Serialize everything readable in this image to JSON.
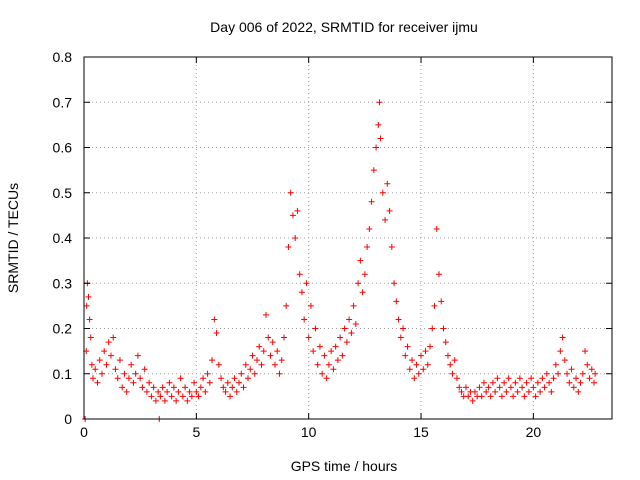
{
  "chart_data": {
    "type": "scatter",
    "title": "Day 006 of 2022, SRMTID for receiver ijmu",
    "xlabel": "GPS time / hours",
    "ylabel": "SRMTID / TECUs",
    "xlim": [
      0,
      23.5
    ],
    "ylim": [
      0,
      0.8
    ],
    "xticks": [
      0,
      5,
      10,
      15,
      20
    ],
    "xtick_labels": [
      "0",
      "5",
      "10",
      "15",
      "20"
    ],
    "yticks": [
      0,
      0.1,
      0.2,
      0.3,
      0.4,
      0.5,
      0.6,
      0.7,
      0.8
    ],
    "ytick_labels": [
      "0",
      "0.1",
      "0.2",
      "0.3",
      "0.4",
      "0.5",
      "0.6",
      "0.7",
      "0.8"
    ],
    "grid": true,
    "marker": "plus",
    "color": "#ff0000",
    "series": [
      {
        "name": "SRMTID",
        "points": [
          [
            0.05,
            0.0
          ],
          [
            0.1,
            0.15
          ],
          [
            0.12,
            0.25
          ],
          [
            0.15,
            0.3
          ],
          [
            0.2,
            0.27
          ],
          [
            0.25,
            0.22
          ],
          [
            0.3,
            0.18
          ],
          [
            0.35,
            0.12
          ],
          [
            0.4,
            0.09
          ],
          [
            0.5,
            0.11
          ],
          [
            0.6,
            0.08
          ],
          [
            0.7,
            0.13
          ],
          [
            0.8,
            0.1
          ],
          [
            0.9,
            0.15
          ],
          [
            1.0,
            0.12
          ],
          [
            1.1,
            0.17
          ],
          [
            1.2,
            0.14
          ],
          [
            1.3,
            0.18
          ],
          [
            1.4,
            0.11
          ],
          [
            1.5,
            0.09
          ],
          [
            1.6,
            0.13
          ],
          [
            1.7,
            0.07
          ],
          [
            1.8,
            0.1
          ],
          [
            1.9,
            0.06
          ],
          [
            2.0,
            0.09
          ],
          [
            2.1,
            0.12
          ],
          [
            2.2,
            0.08
          ],
          [
            2.3,
            0.1
          ],
          [
            2.4,
            0.14
          ],
          [
            2.5,
            0.09
          ],
          [
            2.6,
            0.07
          ],
          [
            2.7,
            0.11
          ],
          [
            2.8,
            0.06
          ],
          [
            2.9,
            0.08
          ],
          [
            3.0,
            0.05
          ],
          [
            3.1,
            0.07
          ],
          [
            3.2,
            0.04
          ],
          [
            3.3,
            0.06
          ],
          [
            3.35,
            0.0
          ],
          [
            3.4,
            0.05
          ],
          [
            3.5,
            0.07
          ],
          [
            3.6,
            0.04
          ],
          [
            3.7,
            0.06
          ],
          [
            3.8,
            0.08
          ],
          [
            3.9,
            0.05
          ],
          [
            4.0,
            0.07
          ],
          [
            4.1,
            0.04
          ],
          [
            4.2,
            0.06
          ],
          [
            4.3,
            0.09
          ],
          [
            4.4,
            0.05
          ],
          [
            4.5,
            0.07
          ],
          [
            4.6,
            0.04
          ],
          [
            4.7,
            0.06
          ],
          [
            4.8,
            0.05
          ],
          [
            4.9,
            0.08
          ],
          [
            5.0,
            0.06
          ],
          [
            5.1,
            0.05
          ],
          [
            5.2,
            0.07
          ],
          [
            5.3,
            0.09
          ],
          [
            5.4,
            0.06
          ],
          [
            5.5,
            0.1
          ],
          [
            5.6,
            0.08
          ],
          [
            5.7,
            0.13
          ],
          [
            5.8,
            0.22
          ],
          [
            5.9,
            0.19
          ],
          [
            6.0,
            0.12
          ],
          [
            6.1,
            0.09
          ],
          [
            6.2,
            0.07
          ],
          [
            6.3,
            0.06
          ],
          [
            6.4,
            0.08
          ],
          [
            6.5,
            0.05
          ],
          [
            6.6,
            0.07
          ],
          [
            6.7,
            0.09
          ],
          [
            6.8,
            0.06
          ],
          [
            6.9,
            0.08
          ],
          [
            7.0,
            0.1
          ],
          [
            7.1,
            0.07
          ],
          [
            7.2,
            0.12
          ],
          [
            7.3,
            0.09
          ],
          [
            7.4,
            0.11
          ],
          [
            7.5,
            0.14
          ],
          [
            7.6,
            0.1
          ],
          [
            7.7,
            0.13
          ],
          [
            7.8,
            0.16
          ],
          [
            7.9,
            0.12
          ],
          [
            8.0,
            0.15
          ],
          [
            8.1,
            0.23
          ],
          [
            8.2,
            0.18
          ],
          [
            8.3,
            0.14
          ],
          [
            8.4,
            0.17
          ],
          [
            8.5,
            0.12
          ],
          [
            8.6,
            0.15
          ],
          [
            8.7,
            0.1
          ],
          [
            8.8,
            0.13
          ],
          [
            8.9,
            0.18
          ],
          [
            9.0,
            0.25
          ],
          [
            9.1,
            0.38
          ],
          [
            9.2,
            0.5
          ],
          [
            9.3,
            0.45
          ],
          [
            9.4,
            0.4
          ],
          [
            9.5,
            0.46
          ],
          [
            9.6,
            0.32
          ],
          [
            9.7,
            0.28
          ],
          [
            9.8,
            0.22
          ],
          [
            9.9,
            0.3
          ],
          [
            10.0,
            0.18
          ],
          [
            10.1,
            0.25
          ],
          [
            10.2,
            0.15
          ],
          [
            10.3,
            0.2
          ],
          [
            10.4,
            0.12
          ],
          [
            10.5,
            0.16
          ],
          [
            10.6,
            0.1
          ],
          [
            10.7,
            0.14
          ],
          [
            10.8,
            0.09
          ],
          [
            10.9,
            0.12
          ],
          [
            11.0,
            0.15
          ],
          [
            11.1,
            0.11
          ],
          [
            11.2,
            0.16
          ],
          [
            11.3,
            0.13
          ],
          [
            11.4,
            0.18
          ],
          [
            11.5,
            0.14
          ],
          [
            11.6,
            0.2
          ],
          [
            11.7,
            0.17
          ],
          [
            11.8,
            0.22
          ],
          [
            11.9,
            0.19
          ],
          [
            12.0,
            0.25
          ],
          [
            12.1,
            0.21
          ],
          [
            12.2,
            0.3
          ],
          [
            12.3,
            0.35
          ],
          [
            12.4,
            0.28
          ],
          [
            12.5,
            0.32
          ],
          [
            12.6,
            0.38
          ],
          [
            12.7,
            0.42
          ],
          [
            12.8,
            0.48
          ],
          [
            12.9,
            0.55
          ],
          [
            13.0,
            0.6
          ],
          [
            13.1,
            0.65
          ],
          [
            13.15,
            0.7
          ],
          [
            13.2,
            0.62
          ],
          [
            13.3,
            0.5
          ],
          [
            13.4,
            0.44
          ],
          [
            13.5,
            0.52
          ],
          [
            13.6,
            0.46
          ],
          [
            13.7,
            0.38
          ],
          [
            13.8,
            0.3
          ],
          [
            13.9,
            0.26
          ],
          [
            14.0,
            0.22
          ],
          [
            14.1,
            0.18
          ],
          [
            14.2,
            0.2
          ],
          [
            14.3,
            0.14
          ],
          [
            14.4,
            0.16
          ],
          [
            14.5,
            0.11
          ],
          [
            14.6,
            0.13
          ],
          [
            14.7,
            0.09
          ],
          [
            14.8,
            0.12
          ],
          [
            14.9,
            0.1
          ],
          [
            15.0,
            0.14
          ],
          [
            15.1,
            0.11
          ],
          [
            15.2,
            0.15
          ],
          [
            15.3,
            0.12
          ],
          [
            15.4,
            0.16
          ],
          [
            15.5,
            0.2
          ],
          [
            15.6,
            0.25
          ],
          [
            15.7,
            0.42
          ],
          [
            15.8,
            0.32
          ],
          [
            15.9,
            0.26
          ],
          [
            16.0,
            0.2
          ],
          [
            16.1,
            0.17
          ],
          [
            16.2,
            0.14
          ],
          [
            16.3,
            0.12
          ],
          [
            16.4,
            0.1
          ],
          [
            16.5,
            0.13
          ],
          [
            16.6,
            0.09
          ],
          [
            16.7,
            0.07
          ],
          [
            16.8,
            0.06
          ],
          [
            16.9,
            0.05
          ],
          [
            17.0,
            0.07
          ],
          [
            17.1,
            0.05
          ],
          [
            17.2,
            0.06
          ],
          [
            17.3,
            0.04
          ],
          [
            17.4,
            0.06
          ],
          [
            17.5,
            0.05
          ],
          [
            17.6,
            0.07
          ],
          [
            17.7,
            0.05
          ],
          [
            17.8,
            0.08
          ],
          [
            17.9,
            0.06
          ],
          [
            18.0,
            0.07
          ],
          [
            18.1,
            0.05
          ],
          [
            18.2,
            0.08
          ],
          [
            18.3,
            0.06
          ],
          [
            18.4,
            0.09
          ],
          [
            18.5,
            0.07
          ],
          [
            18.6,
            0.05
          ],
          [
            18.7,
            0.08
          ],
          [
            18.8,
            0.06
          ],
          [
            18.9,
            0.09
          ],
          [
            19.0,
            0.07
          ],
          [
            19.1,
            0.05
          ],
          [
            19.2,
            0.08
          ],
          [
            19.3,
            0.06
          ],
          [
            19.4,
            0.09
          ],
          [
            19.5,
            0.07
          ],
          [
            19.6,
            0.05
          ],
          [
            19.7,
            0.08
          ],
          [
            19.8,
            0.06
          ],
          [
            19.9,
            0.09
          ],
          [
            20.0,
            0.07
          ],
          [
            20.1,
            0.05
          ],
          [
            20.2,
            0.08
          ],
          [
            20.3,
            0.06
          ],
          [
            20.4,
            0.09
          ],
          [
            20.5,
            0.07
          ],
          [
            20.6,
            0.1
          ],
          [
            20.7,
            0.08
          ],
          [
            20.8,
            0.06
          ],
          [
            20.9,
            0.09
          ],
          [
            21.0,
            0.12
          ],
          [
            21.1,
            0.1
          ],
          [
            21.2,
            0.15
          ],
          [
            21.3,
            0.18
          ],
          [
            21.4,
            0.13
          ],
          [
            21.5,
            0.1
          ],
          [
            21.6,
            0.08
          ],
          [
            21.7,
            0.11
          ],
          [
            21.8,
            0.07
          ],
          [
            21.9,
            0.09
          ],
          [
            22.0,
            0.06
          ],
          [
            22.1,
            0.08
          ],
          [
            22.2,
            0.1
          ],
          [
            22.3,
            0.15
          ],
          [
            22.4,
            0.12
          ],
          [
            22.5,
            0.09
          ],
          [
            22.6,
            0.11
          ],
          [
            22.7,
            0.08
          ],
          [
            22.75,
            0.1
          ]
        ]
      }
    ]
  }
}
